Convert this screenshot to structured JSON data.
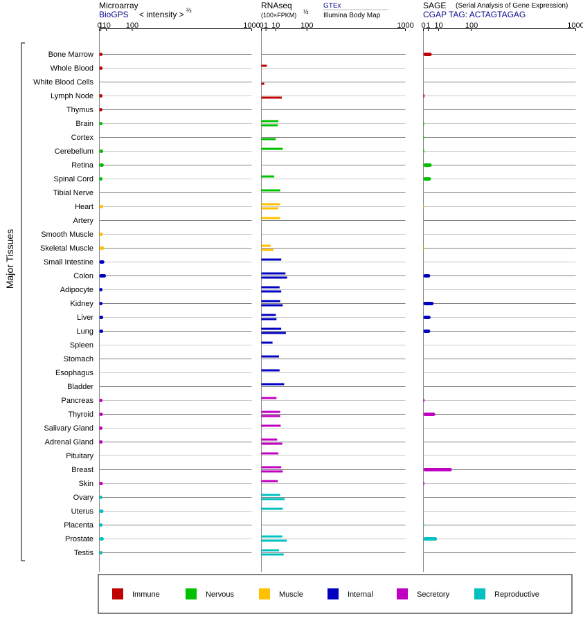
{
  "header": {
    "microarray_title": "Microarray",
    "microarray_source": "BioGPS",
    "microarray_unit": "< intensity >",
    "microarray_exp": "⅔",
    "rnaseq_title": "RNAseq",
    "rnaseq_unit": "(100×FPKM)",
    "rnaseq_exp": "½",
    "rnaseq_src1": "GTEx",
    "rnaseq_src2": "Illumina Body Map",
    "sage_title": "SAGE",
    "sage_desc": "(Serial Analysis of Gene Expression)",
    "sage_tag": "CGAP TAG: ACTAGTAGAG"
  },
  "ylabel": "Major Tissues",
  "tick_labels": [
    "0",
    "1",
    "10",
    "100",
    "1000"
  ],
  "legend": [
    {
      "name": "Immune",
      "color": "#c00000"
    },
    {
      "name": "Nervous",
      "color": "#00c000"
    },
    {
      "name": "Muscle",
      "color": "#ffc000"
    },
    {
      "name": "Internal",
      "color": "#0000c0"
    },
    {
      "name": "Secretory",
      "color": "#c000c0"
    },
    {
      "name": "Reproductive",
      "color": "#00c0c0"
    }
  ],
  "chart_data": {
    "type": "bar",
    "x_scale": "power",
    "xlim": [
      0,
      1000
    ],
    "panels": [
      "Microarray",
      "RNAseq (GTEx)",
      "RNAseq (Illumina Body Map)",
      "SAGE"
    ],
    "tissues": [
      {
        "name": "Bone Marrow",
        "group": "Immune",
        "microarray": 3,
        "gtex": null,
        "ibm": null,
        "sage": 3
      },
      {
        "name": "Whole Blood",
        "group": "Immune",
        "microarray": 3,
        "gtex": 1.5,
        "ibm": null,
        "sage": null
      },
      {
        "name": "White Blood Cells",
        "group": "Immune",
        "microarray": null,
        "gtex": null,
        "ibm": 0.4,
        "sage": null
      },
      {
        "name": "Lymph Node",
        "group": "Immune",
        "microarray": 2.8,
        "gtex": null,
        "ibm": 20,
        "sage": 0.05
      },
      {
        "name": "Thymus",
        "group": "Immune",
        "microarray": 2.7,
        "gtex": null,
        "ibm": null,
        "sage": null
      },
      {
        "name": "Brain",
        "group": "Nervous",
        "microarray": 3,
        "gtex": 14,
        "ibm": 13,
        "sage": 0.03
      },
      {
        "name": "Cortex",
        "group": "Nervous",
        "microarray": null,
        "gtex": null,
        "ibm": 10,
        "sage": 0.02
      },
      {
        "name": "Cerebellum",
        "group": "Nervous",
        "microarray": 4,
        "gtex": 22,
        "ibm": null,
        "sage": 0.03
      },
      {
        "name": "Retina",
        "group": "Nervous",
        "microarray": 5,
        "gtex": null,
        "ibm": null,
        "sage": 3
      },
      {
        "name": "Spinal Cord",
        "group": "Nervous",
        "microarray": 3,
        "gtex": 8,
        "ibm": null,
        "sage": 2.5
      },
      {
        "name": "Tibial Nerve",
        "group": "Nervous",
        "microarray": null,
        "gtex": 17,
        "ibm": null,
        "sage": null
      },
      {
        "name": "Heart",
        "group": "Muscle",
        "microarray": 4,
        "gtex": 17,
        "ibm": 14,
        "sage": 0.01
      },
      {
        "name": "Artery",
        "group": "Muscle",
        "microarray": null,
        "gtex": 17,
        "ibm": null,
        "sage": null
      },
      {
        "name": "Smooth Muscle",
        "group": "Muscle",
        "microarray": 3.5,
        "gtex": null,
        "ibm": null,
        "sage": null
      },
      {
        "name": "Skeletal Muscle",
        "group": "Muscle",
        "microarray": 5.5,
        "gtex": 4,
        "ibm": 7,
        "sage": 0.01
      },
      {
        "name": "Small Intestine",
        "group": "Internal",
        "microarray": 6,
        "gtex": 19,
        "ibm": null,
        "sage": null
      },
      {
        "name": "Colon",
        "group": "Internal",
        "microarray": 9,
        "gtex": 28,
        "ibm": 32,
        "sage": 2
      },
      {
        "name": "Adipocyte",
        "group": "Internal",
        "microarray": 3,
        "gtex": 16,
        "ibm": 19,
        "sage": null
      },
      {
        "name": "Kidney",
        "group": "Internal",
        "microarray": 3,
        "gtex": 17,
        "ibm": 22,
        "sage": 4.5
      },
      {
        "name": "Liver",
        "group": "Internal",
        "microarray": 4,
        "gtex": 10,
        "ibm": 11,
        "sage": 2.2
      },
      {
        "name": "Lung",
        "group": "Internal",
        "microarray": 4,
        "gtex": 19,
        "ibm": 29,
        "sage": 2
      },
      {
        "name": "Spleen",
        "group": "Internal",
        "microarray": null,
        "gtex": 6,
        "ibm": null,
        "sage": null
      },
      {
        "name": "Stomach",
        "group": "Internal",
        "microarray": null,
        "gtex": 15,
        "ibm": null,
        "sage": null
      },
      {
        "name": "Esophagus",
        "group": "Internal",
        "microarray": null,
        "gtex": 16,
        "ibm": null,
        "sage": null
      },
      {
        "name": "Bladder",
        "group": "Internal",
        "microarray": null,
        "gtex": 25,
        "ibm": null,
        "sage": null
      },
      {
        "name": "Pancreas",
        "group": "Secretory",
        "microarray": 3,
        "gtex": 11,
        "ibm": null,
        "sage": 0.05
      },
      {
        "name": "Thyroid",
        "group": "Secretory",
        "microarray": 3.5,
        "gtex": 17,
        "ibm": 17,
        "sage": 6
      },
      {
        "name": "Salivary Gland",
        "group": "Secretory",
        "microarray": 2.8,
        "gtex": 18,
        "ibm": null,
        "sage": null
      },
      {
        "name": "Adrenal Gland",
        "group": "Secretory",
        "microarray": 3,
        "gtex": 12,
        "ibm": 21,
        "sage": null
      },
      {
        "name": "Pituitary",
        "group": "Secretory",
        "microarray": null,
        "gtex": 14,
        "ibm": null,
        "sage": null
      },
      {
        "name": "Breast",
        "group": "Secretory",
        "microarray": null,
        "gtex": 19,
        "ibm": 22,
        "sage": 35
      },
      {
        "name": "Skin",
        "group": "Secretory",
        "microarray": 3.5,
        "gtex": 13,
        "ibm": null,
        "sage": 0.04
      },
      {
        "name": "Ovary",
        "group": "Reproductive",
        "microarray": 2.8,
        "gtex": 17,
        "ibm": 26,
        "sage": null
      },
      {
        "name": "Uterus",
        "group": "Reproductive",
        "microarray": 4.5,
        "gtex": 22,
        "ibm": null,
        "sage": null
      },
      {
        "name": "Placenta",
        "group": "Reproductive",
        "microarray": 3,
        "gtex": null,
        "ibm": null,
        "sage": 0.02
      },
      {
        "name": "Prostate",
        "group": "Reproductive",
        "microarray": 5,
        "gtex": 21,
        "ibm": 31,
        "sage": 8
      },
      {
        "name": "Testis",
        "group": "Reproductive",
        "microarray": 3,
        "gtex": 15,
        "ibm": 24,
        "sage": null
      }
    ]
  }
}
